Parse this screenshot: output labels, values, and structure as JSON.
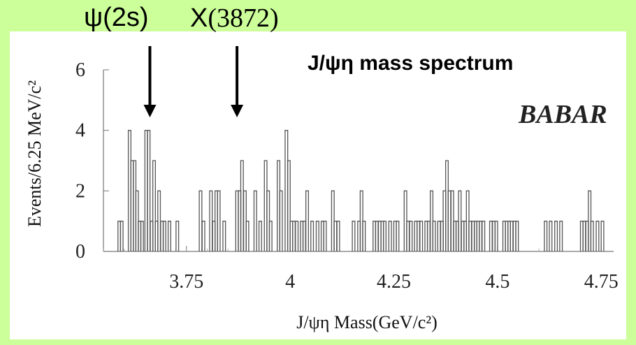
{
  "annotations": {
    "psi_2s": "ψ(2s)",
    "x3872_prefix": "X",
    "x3872_mass": "(3872)"
  },
  "chart_data": {
    "type": "histogram",
    "title": "J/ψη mass spectrum",
    "experiment_logo": "BABAR",
    "xlabel": "J/ψη Mass(GeV/c²)",
    "ylabel": "Events/6.25 MeV/c²",
    "xlim": [
      3.55,
      4.78
    ],
    "ylim": [
      0,
      6
    ],
    "x_ticks": [
      3.75,
      4,
      4.25,
      4.5,
      4.75
    ],
    "x_tick_labels": [
      "3.75",
      "4",
      "4.25",
      "4.5",
      "4.75"
    ],
    "y_ticks": [
      0,
      2,
      4,
      6
    ],
    "y_tick_labels": [
      "0",
      "2",
      "4",
      "6"
    ],
    "bin_width": 0.00625,
    "bins": [
      [
        3.585,
        1
      ],
      [
        3.591,
        1
      ],
      [
        3.61,
        4
      ],
      [
        3.616,
        3
      ],
      [
        3.622,
        3
      ],
      [
        3.628,
        2
      ],
      [
        3.634,
        1
      ],
      [
        3.64,
        1
      ],
      [
        3.65,
        4
      ],
      [
        3.656,
        4
      ],
      [
        3.663,
        1
      ],
      [
        3.669,
        3
      ],
      [
        3.675,
        1
      ],
      [
        3.681,
        2
      ],
      [
        3.688,
        1
      ],
      [
        3.694,
        1
      ],
      [
        3.706,
        1
      ],
      [
        3.725,
        1
      ],
      [
        3.781,
        2
      ],
      [
        3.788,
        1
      ],
      [
        3.806,
        2
      ],
      [
        3.813,
        1
      ],
      [
        3.819,
        2
      ],
      [
        3.825,
        2
      ],
      [
        3.838,
        1
      ],
      [
        3.869,
        2
      ],
      [
        3.875,
        2
      ],
      [
        3.881,
        3
      ],
      [
        3.888,
        2
      ],
      [
        3.894,
        1
      ],
      [
        3.913,
        2
      ],
      [
        3.925,
        1
      ],
      [
        3.938,
        3
      ],
      [
        3.944,
        2
      ],
      [
        3.95,
        1
      ],
      [
        3.969,
        3
      ],
      [
        3.975,
        2
      ],
      [
        3.988,
        4
      ],
      [
        3.994,
        3
      ],
      [
        4.0,
        1
      ],
      [
        4.006,
        1
      ],
      [
        4.013,
        1
      ],
      [
        4.025,
        1
      ],
      [
        4.031,
        1
      ],
      [
        4.038,
        2
      ],
      [
        4.05,
        1
      ],
      [
        4.063,
        1
      ],
      [
        4.075,
        1
      ],
      [
        4.081,
        1
      ],
      [
        4.1,
        2
      ],
      [
        4.106,
        1
      ],
      [
        4.113,
        1
      ],
      [
        4.15,
        1
      ],
      [
        4.163,
        1
      ],
      [
        4.169,
        2
      ],
      [
        4.175,
        1
      ],
      [
        4.2,
        1
      ],
      [
        4.206,
        1
      ],
      [
        4.213,
        1
      ],
      [
        4.219,
        1
      ],
      [
        4.225,
        1
      ],
      [
        4.238,
        1
      ],
      [
        4.25,
        1
      ],
      [
        4.256,
        1
      ],
      [
        4.275,
        2
      ],
      [
        4.281,
        1
      ],
      [
        4.288,
        1
      ],
      [
        4.3,
        1
      ],
      [
        4.306,
        1
      ],
      [
        4.313,
        1
      ],
      [
        4.325,
        1
      ],
      [
        4.331,
        1
      ],
      [
        4.338,
        2
      ],
      [
        4.344,
        1
      ],
      [
        4.356,
        1
      ],
      [
        4.363,
        1
      ],
      [
        4.369,
        2
      ],
      [
        4.375,
        3
      ],
      [
        4.381,
        2
      ],
      [
        4.388,
        2
      ],
      [
        4.394,
        1
      ],
      [
        4.4,
        1
      ],
      [
        4.406,
        2
      ],
      [
        4.413,
        1
      ],
      [
        4.419,
        1
      ],
      [
        4.425,
        2
      ],
      [
        4.431,
        1
      ],
      [
        4.438,
        1
      ],
      [
        4.444,
        1
      ],
      [
        4.45,
        1
      ],
      [
        4.456,
        1
      ],
      [
        4.463,
        1
      ],
      [
        4.481,
        1
      ],
      [
        4.488,
        1
      ],
      [
        4.494,
        1
      ],
      [
        4.513,
        1
      ],
      [
        4.519,
        1
      ],
      [
        4.525,
        1
      ],
      [
        4.531,
        1
      ],
      [
        4.538,
        1
      ],
      [
        4.544,
        1
      ],
      [
        4.613,
        1
      ],
      [
        4.625,
        1
      ],
      [
        4.638,
        1
      ],
      [
        4.65,
        1
      ],
      [
        4.7,
        1
      ],
      [
        4.706,
        1
      ],
      [
        4.713,
        1
      ],
      [
        4.719,
        2
      ],
      [
        4.725,
        1
      ],
      [
        4.738,
        1
      ],
      [
        4.75,
        1
      ]
    ],
    "arrows": [
      {
        "label_key": "psi_2s",
        "x": 3.662
      },
      {
        "label_key": "x3872",
        "x": 3.872
      }
    ],
    "grid": false,
    "legend": "none"
  },
  "colors": {
    "background": "#ccff99",
    "panel": "#ffffff",
    "histogram": "#555555",
    "text": "#000000"
  }
}
